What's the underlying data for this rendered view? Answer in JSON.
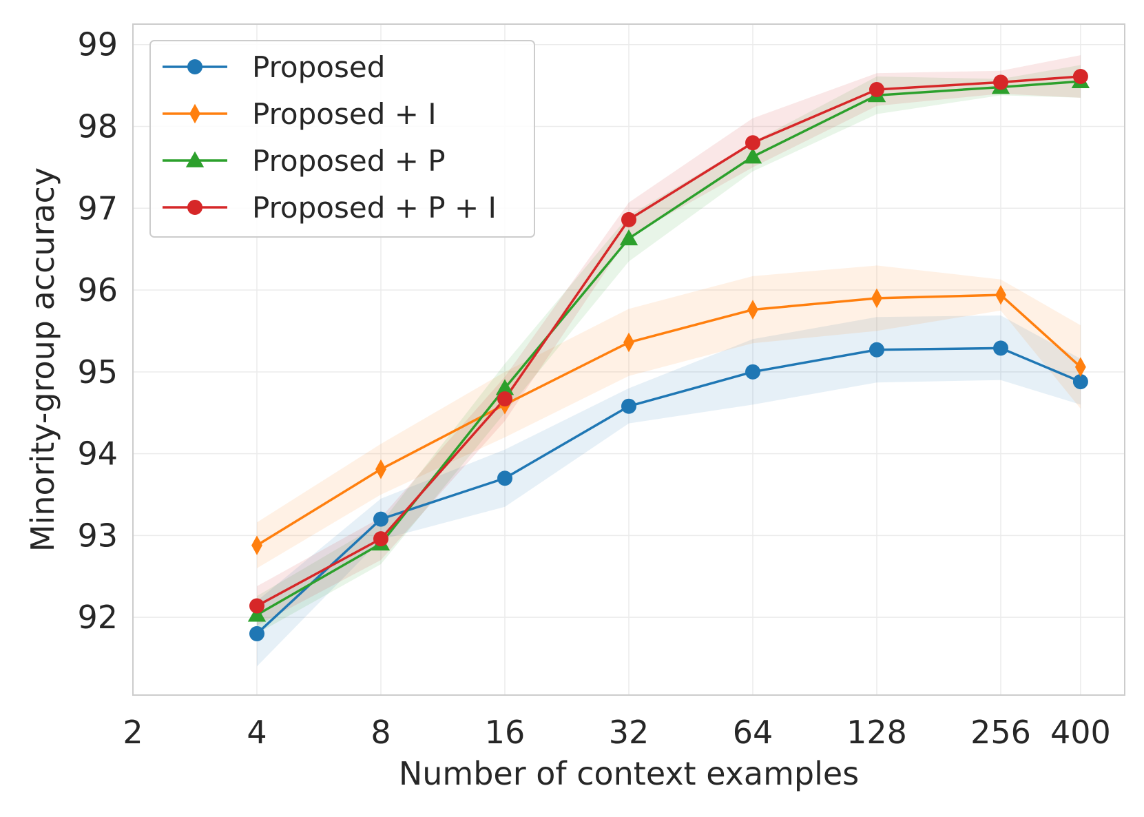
{
  "chart_data": {
    "type": "line",
    "title": "",
    "xlabel": "Number of context examples",
    "ylabel": "Minority-group accuracy",
    "x_scale": "log2",
    "x": [
      4,
      8,
      16,
      32,
      64,
      128,
      256,
      400
    ],
    "xlim": [
      2,
      512
    ],
    "ylim": [
      91.05,
      99.25
    ],
    "x_ticks": [
      2,
      4,
      8,
      16,
      32,
      64,
      128,
      256,
      400
    ],
    "x_tick_labels": [
      "2",
      "4",
      "8",
      "16",
      "32",
      "64",
      "128",
      "256",
      "400"
    ],
    "y_ticks": [
      92,
      93,
      94,
      95,
      96,
      97,
      98,
      99
    ],
    "y_tick_labels": [
      "92",
      "93",
      "94",
      "95",
      "96",
      "97",
      "98",
      "99"
    ],
    "grid": true,
    "legend_position": "top-left",
    "series": [
      {
        "name": "Proposed",
        "color": "#1f77b4",
        "marker": "circle",
        "values": [
          91.8,
          93.2,
          93.7,
          94.58,
          95.0,
          95.27,
          95.29,
          94.88
        ],
        "band_low": [
          91.4,
          92.95,
          93.35,
          94.37,
          94.6,
          94.87,
          94.9,
          94.6
        ],
        "band_high": [
          92.2,
          93.45,
          94.05,
          94.8,
          95.4,
          95.67,
          95.69,
          95.16
        ]
      },
      {
        "name": "Proposed + I",
        "color": "#ff7f0e",
        "marker": "diamond",
        "values": [
          92.88,
          93.81,
          94.6,
          95.36,
          95.76,
          95.9,
          95.94,
          95.06
        ],
        "band_low": [
          92.6,
          93.5,
          94.2,
          94.95,
          95.35,
          95.5,
          95.75,
          94.55
        ],
        "band_high": [
          93.16,
          94.12,
          95.0,
          95.77,
          96.17,
          96.3,
          96.13,
          95.57
        ]
      },
      {
        "name": "Proposed + P",
        "color": "#2ca02c",
        "marker": "triangle",
        "values": [
          92.03,
          92.9,
          94.8,
          96.63,
          97.63,
          98.38,
          98.48,
          98.55
        ],
        "band_low": [
          91.8,
          92.65,
          94.5,
          96.35,
          97.45,
          98.15,
          98.38,
          98.35
        ],
        "band_high": [
          92.26,
          93.15,
          95.1,
          96.91,
          97.81,
          98.61,
          98.58,
          98.75
        ]
      },
      {
        "name": "Proposed + P + I",
        "color": "#d62728",
        "marker": "circle",
        "values": [
          92.14,
          92.96,
          94.67,
          96.86,
          97.8,
          98.45,
          98.54,
          98.61
        ],
        "band_low": [
          91.9,
          92.7,
          94.4,
          96.65,
          97.5,
          98.25,
          98.4,
          98.35
        ],
        "band_high": [
          92.38,
          93.22,
          94.94,
          97.07,
          98.1,
          98.65,
          98.68,
          98.87
        ]
      }
    ]
  }
}
